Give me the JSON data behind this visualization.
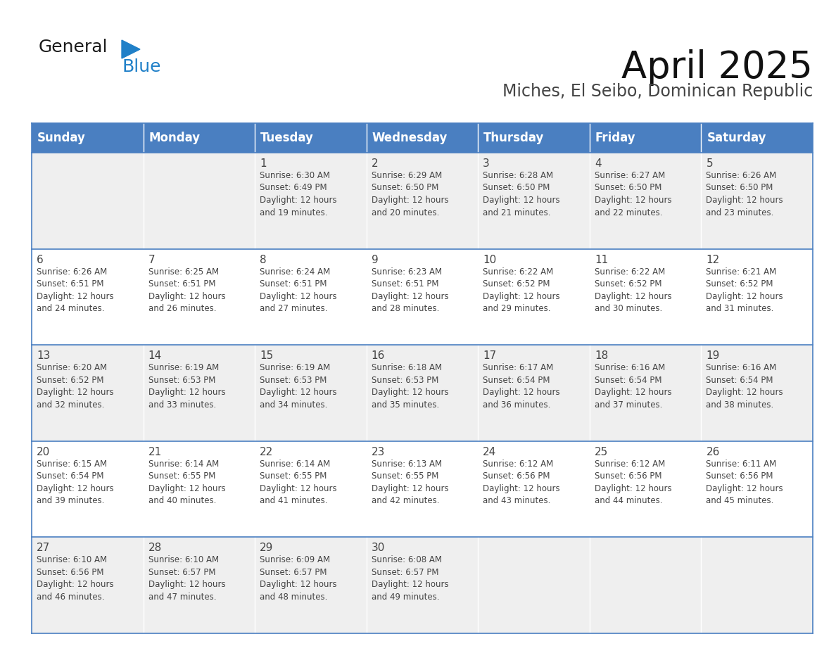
{
  "title": "April 2025",
  "subtitle": "Miches, El Seibo, Dominican Republic",
  "header_bg_color": "#4a7fc1",
  "header_text_color": "#FFFFFF",
  "row_bg_colors": [
    "#EFEFEF",
    "#FFFFFF",
    "#EFEFEF",
    "#FFFFFF",
    "#EFEFEF"
  ],
  "border_color": "#4a7fc1",
  "text_color": "#444444",
  "days_of_week": [
    "Sunday",
    "Monday",
    "Tuesday",
    "Wednesday",
    "Thursday",
    "Friday",
    "Saturday"
  ],
  "calendar_data": [
    [
      {
        "day": "",
        "info": ""
      },
      {
        "day": "",
        "info": ""
      },
      {
        "day": "1",
        "info": "Sunrise: 6:30 AM\nSunset: 6:49 PM\nDaylight: 12 hours\nand 19 minutes."
      },
      {
        "day": "2",
        "info": "Sunrise: 6:29 AM\nSunset: 6:50 PM\nDaylight: 12 hours\nand 20 minutes."
      },
      {
        "day": "3",
        "info": "Sunrise: 6:28 AM\nSunset: 6:50 PM\nDaylight: 12 hours\nand 21 minutes."
      },
      {
        "day": "4",
        "info": "Sunrise: 6:27 AM\nSunset: 6:50 PM\nDaylight: 12 hours\nand 22 minutes."
      },
      {
        "day": "5",
        "info": "Sunrise: 6:26 AM\nSunset: 6:50 PM\nDaylight: 12 hours\nand 23 minutes."
      }
    ],
    [
      {
        "day": "6",
        "info": "Sunrise: 6:26 AM\nSunset: 6:51 PM\nDaylight: 12 hours\nand 24 minutes."
      },
      {
        "day": "7",
        "info": "Sunrise: 6:25 AM\nSunset: 6:51 PM\nDaylight: 12 hours\nand 26 minutes."
      },
      {
        "day": "8",
        "info": "Sunrise: 6:24 AM\nSunset: 6:51 PM\nDaylight: 12 hours\nand 27 minutes."
      },
      {
        "day": "9",
        "info": "Sunrise: 6:23 AM\nSunset: 6:51 PM\nDaylight: 12 hours\nand 28 minutes."
      },
      {
        "day": "10",
        "info": "Sunrise: 6:22 AM\nSunset: 6:52 PM\nDaylight: 12 hours\nand 29 minutes."
      },
      {
        "day": "11",
        "info": "Sunrise: 6:22 AM\nSunset: 6:52 PM\nDaylight: 12 hours\nand 30 minutes."
      },
      {
        "day": "12",
        "info": "Sunrise: 6:21 AM\nSunset: 6:52 PM\nDaylight: 12 hours\nand 31 minutes."
      }
    ],
    [
      {
        "day": "13",
        "info": "Sunrise: 6:20 AM\nSunset: 6:52 PM\nDaylight: 12 hours\nand 32 minutes."
      },
      {
        "day": "14",
        "info": "Sunrise: 6:19 AM\nSunset: 6:53 PM\nDaylight: 12 hours\nand 33 minutes."
      },
      {
        "day": "15",
        "info": "Sunrise: 6:19 AM\nSunset: 6:53 PM\nDaylight: 12 hours\nand 34 minutes."
      },
      {
        "day": "16",
        "info": "Sunrise: 6:18 AM\nSunset: 6:53 PM\nDaylight: 12 hours\nand 35 minutes."
      },
      {
        "day": "17",
        "info": "Sunrise: 6:17 AM\nSunset: 6:54 PM\nDaylight: 12 hours\nand 36 minutes."
      },
      {
        "day": "18",
        "info": "Sunrise: 6:16 AM\nSunset: 6:54 PM\nDaylight: 12 hours\nand 37 minutes."
      },
      {
        "day": "19",
        "info": "Sunrise: 6:16 AM\nSunset: 6:54 PM\nDaylight: 12 hours\nand 38 minutes."
      }
    ],
    [
      {
        "day": "20",
        "info": "Sunrise: 6:15 AM\nSunset: 6:54 PM\nDaylight: 12 hours\nand 39 minutes."
      },
      {
        "day": "21",
        "info": "Sunrise: 6:14 AM\nSunset: 6:55 PM\nDaylight: 12 hours\nand 40 minutes."
      },
      {
        "day": "22",
        "info": "Sunrise: 6:14 AM\nSunset: 6:55 PM\nDaylight: 12 hours\nand 41 minutes."
      },
      {
        "day": "23",
        "info": "Sunrise: 6:13 AM\nSunset: 6:55 PM\nDaylight: 12 hours\nand 42 minutes."
      },
      {
        "day": "24",
        "info": "Sunrise: 6:12 AM\nSunset: 6:56 PM\nDaylight: 12 hours\nand 43 minutes."
      },
      {
        "day": "25",
        "info": "Sunrise: 6:12 AM\nSunset: 6:56 PM\nDaylight: 12 hours\nand 44 minutes."
      },
      {
        "day": "26",
        "info": "Sunrise: 6:11 AM\nSunset: 6:56 PM\nDaylight: 12 hours\nand 45 minutes."
      }
    ],
    [
      {
        "day": "27",
        "info": "Sunrise: 6:10 AM\nSunset: 6:56 PM\nDaylight: 12 hours\nand 46 minutes."
      },
      {
        "day": "28",
        "info": "Sunrise: 6:10 AM\nSunset: 6:57 PM\nDaylight: 12 hours\nand 47 minutes."
      },
      {
        "day": "29",
        "info": "Sunrise: 6:09 AM\nSunset: 6:57 PM\nDaylight: 12 hours\nand 48 minutes."
      },
      {
        "day": "30",
        "info": "Sunrise: 6:08 AM\nSunset: 6:57 PM\nDaylight: 12 hours\nand 49 minutes."
      },
      {
        "day": "",
        "info": ""
      },
      {
        "day": "",
        "info": ""
      },
      {
        "day": "",
        "info": ""
      }
    ]
  ],
  "logo_color_general": "#1a1a1a",
  "logo_color_blue": "#2080C8",
  "logo_triangle_color": "#2080C8",
  "title_fontsize": 38,
  "subtitle_fontsize": 17,
  "header_fontsize": 12,
  "day_num_fontsize": 11,
  "info_fontsize": 8.5
}
